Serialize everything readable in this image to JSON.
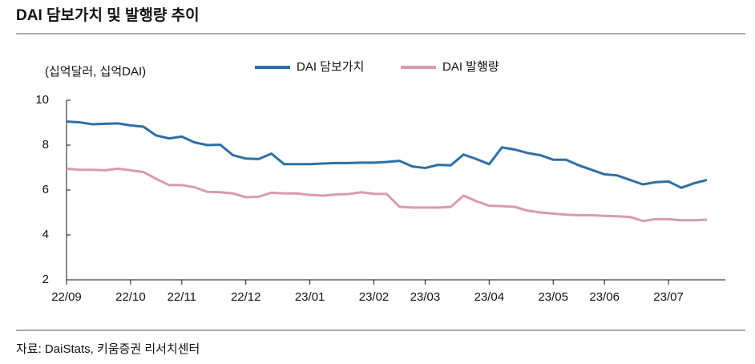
{
  "chart_data": {
    "type": "line",
    "title": "DAI 담보가치 및 발행량 추이",
    "y_axis_label": "(십억달러, 십억DAI)",
    "source": "자료: DaiStats, 키움증권 리서치센터",
    "categories": [
      "22/09",
      null,
      null,
      null,
      null,
      "22/10",
      null,
      null,
      null,
      "22/11",
      null,
      null,
      null,
      null,
      "22/12",
      null,
      null,
      null,
      null,
      "23/01",
      null,
      null,
      null,
      null,
      "23/02",
      null,
      null,
      null,
      "23/03",
      null,
      null,
      null,
      null,
      "23/04",
      null,
      null,
      null,
      null,
      "23/05",
      null,
      null,
      null,
      "23/06",
      null,
      null,
      null,
      null,
      "23/07",
      null,
      null,
      null
    ],
    "series": [
      {
        "name": "DAI 담보가치",
        "color": "#2f6fa5",
        "values": [
          9.05,
          9.02,
          8.93,
          8.95,
          8.97,
          8.88,
          8.82,
          8.43,
          8.3,
          8.38,
          8.12,
          8.0,
          8.02,
          7.55,
          7.4,
          7.38,
          7.62,
          7.15,
          7.15,
          7.15,
          7.18,
          7.2,
          7.2,
          7.22,
          7.22,
          7.25,
          7.3,
          7.05,
          6.98,
          7.12,
          7.1,
          7.58,
          7.38,
          7.15,
          7.9,
          7.8,
          7.65,
          7.55,
          7.35,
          7.35,
          7.1,
          6.9,
          6.7,
          6.65,
          6.45,
          6.25,
          6.35,
          6.38,
          6.1,
          6.3,
          6.45
        ]
      },
      {
        "name": "DAI 발행량",
        "color": "#d99ab1",
        "values": [
          6.95,
          6.9,
          6.9,
          6.88,
          6.95,
          6.88,
          6.8,
          6.5,
          6.22,
          6.22,
          6.12,
          5.92,
          5.9,
          5.85,
          5.68,
          5.7,
          5.88,
          5.85,
          5.85,
          5.78,
          5.75,
          5.8,
          5.82,
          5.9,
          5.83,
          5.82,
          5.25,
          5.22,
          5.22,
          5.22,
          5.25,
          5.75,
          5.5,
          5.3,
          5.28,
          5.25,
          5.08,
          5.0,
          4.95,
          4.9,
          4.88,
          4.88,
          4.85,
          4.83,
          4.8,
          4.62,
          4.7,
          4.7,
          4.65,
          4.65,
          4.68
        ]
      }
    ],
    "ylim": [
      2,
      10
    ],
    "yticks": [
      2,
      4,
      6,
      8,
      10
    ],
    "grid": false
  }
}
